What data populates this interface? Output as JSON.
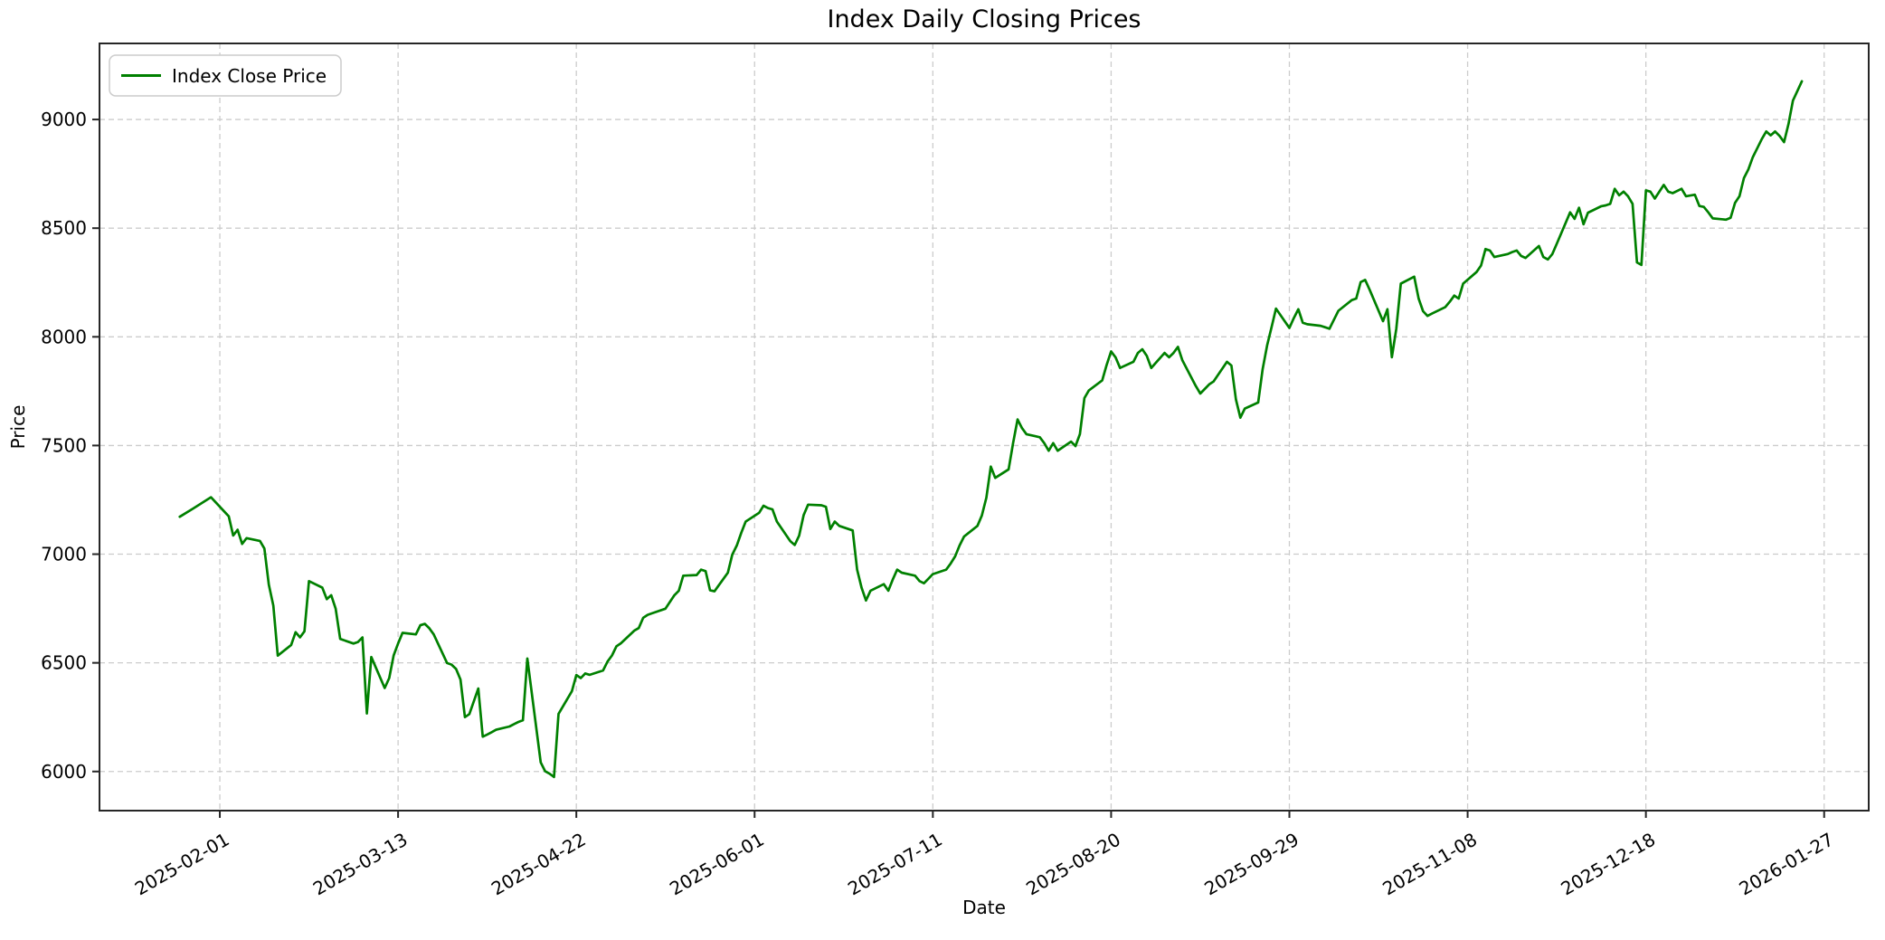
{
  "chart_data": {
    "type": "line",
    "title": "Index Daily Closing Prices",
    "xlabel": "Date",
    "ylabel": "Price",
    "legend": {
      "position": "upper-left",
      "entries": [
        "Index Close Price"
      ]
    },
    "grid": {
      "visible": true,
      "style": "dashed",
      "color": "#cccccc"
    },
    "x_ticks": [
      "2025-02-01",
      "2025-03-13",
      "2025-04-22",
      "2025-06-01",
      "2025-07-11",
      "2025-08-20",
      "2025-09-29",
      "2025-11-08",
      "2025-12-18",
      "2026-01-27"
    ],
    "x_tick_rotation": 30,
    "y_ticks": [
      6000,
      6500,
      7000,
      7500,
      8000,
      8500,
      9000
    ],
    "xlim": [
      "2025-01-05",
      "2026-02-06"
    ],
    "ylim": [
      5820,
      9350
    ],
    "series": [
      {
        "name": "Index Close Price",
        "color": "#008000",
        "line_width": 2.7,
        "data": [
          [
            "2025-01-23",
            7172
          ],
          [
            "2025-01-26",
            7210
          ],
          [
            "2025-01-30",
            7262
          ],
          [
            "2025-02-03",
            7174
          ],
          [
            "2025-02-04",
            7086
          ],
          [
            "2025-02-05",
            7112
          ],
          [
            "2025-02-06",
            7047
          ],
          [
            "2025-02-07",
            7074
          ],
          [
            "2025-02-10",
            7061
          ],
          [
            "2025-02-11",
            7026
          ],
          [
            "2025-02-12",
            6860
          ],
          [
            "2025-02-13",
            6763
          ],
          [
            "2025-02-14",
            6533
          ],
          [
            "2025-02-17",
            6582
          ],
          [
            "2025-02-18",
            6641
          ],
          [
            "2025-02-19",
            6617
          ],
          [
            "2025-02-20",
            6645
          ],
          [
            "2025-02-21",
            6876
          ],
          [
            "2025-02-24",
            6846
          ],
          [
            "2025-02-25",
            6793
          ],
          [
            "2025-02-26",
            6811
          ],
          [
            "2025-02-27",
            6749
          ],
          [
            "2025-02-28",
            6610
          ],
          [
            "2025-03-03",
            6589
          ],
          [
            "2025-03-04",
            6596
          ],
          [
            "2025-03-05",
            6617
          ],
          [
            "2025-03-06",
            6267
          ],
          [
            "2025-03-07",
            6527
          ],
          [
            "2025-03-10",
            6384
          ],
          [
            "2025-03-11",
            6430
          ],
          [
            "2025-03-12",
            6534
          ],
          [
            "2025-03-13",
            6589
          ],
          [
            "2025-03-14",
            6638
          ],
          [
            "2025-03-17",
            6631
          ],
          [
            "2025-03-18",
            6673
          ],
          [
            "2025-03-19",
            6679
          ],
          [
            "2025-03-20",
            6659
          ],
          [
            "2025-03-21",
            6631
          ],
          [
            "2025-03-24",
            6499
          ],
          [
            "2025-03-25",
            6492
          ],
          [
            "2025-03-26",
            6472
          ],
          [
            "2025-03-27",
            6423
          ],
          [
            "2025-03-28",
            6250
          ],
          [
            "2025-03-29",
            6264
          ],
          [
            "2025-03-31",
            6382
          ],
          [
            "2025-04-01",
            6160
          ],
          [
            "2025-04-02",
            6170
          ],
          [
            "2025-04-03",
            6181
          ],
          [
            "2025-04-04",
            6192
          ],
          [
            "2025-04-07",
            6207
          ],
          [
            "2025-04-08",
            6218
          ],
          [
            "2025-04-09",
            6228
          ],
          [
            "2025-04-10",
            6236
          ],
          [
            "2025-04-11",
            6520
          ],
          [
            "2025-04-14",
            6042
          ],
          [
            "2025-04-15",
            6001
          ],
          [
            "2025-04-16",
            5990
          ],
          [
            "2025-04-17",
            5975
          ],
          [
            "2025-04-18",
            6265
          ],
          [
            "2025-04-21",
            6370
          ],
          [
            "2025-04-22",
            6444
          ],
          [
            "2025-04-23",
            6430
          ],
          [
            "2025-04-24",
            6451
          ],
          [
            "2025-04-25",
            6445
          ],
          [
            "2025-04-28",
            6465
          ],
          [
            "2025-04-29",
            6506
          ],
          [
            "2025-04-30",
            6534
          ],
          [
            "2025-05-01",
            6576
          ],
          [
            "2025-05-02",
            6590
          ],
          [
            "2025-05-05",
            6648
          ],
          [
            "2025-05-06",
            6660
          ],
          [
            "2025-05-07",
            6707
          ],
          [
            "2025-05-08",
            6721
          ],
          [
            "2025-05-09",
            6728
          ],
          [
            "2025-05-12",
            6749
          ],
          [
            "2025-05-13",
            6780
          ],
          [
            "2025-05-14",
            6811
          ],
          [
            "2025-05-15",
            6832
          ],
          [
            "2025-05-16",
            6901
          ],
          [
            "2025-05-19",
            6904
          ],
          [
            "2025-05-20",
            6929
          ],
          [
            "2025-05-21",
            6922
          ],
          [
            "2025-05-22",
            6834
          ],
          [
            "2025-05-23",
            6829
          ],
          [
            "2025-05-26",
            6915
          ],
          [
            "2025-05-27",
            6998
          ],
          [
            "2025-05-28",
            7040
          ],
          [
            "2025-05-29",
            7098
          ],
          [
            "2025-05-30",
            7150
          ],
          [
            "2025-06-02",
            7190
          ],
          [
            "2025-06-03",
            7223
          ],
          [
            "2025-06-04",
            7212
          ],
          [
            "2025-06-05",
            7206
          ],
          [
            "2025-06-06",
            7150
          ],
          [
            "2025-06-09",
            7060
          ],
          [
            "2025-06-10",
            7042
          ],
          [
            "2025-06-11",
            7085
          ],
          [
            "2025-06-12",
            7180
          ],
          [
            "2025-06-13",
            7228
          ],
          [
            "2025-06-16",
            7225
          ],
          [
            "2025-06-17",
            7218
          ],
          [
            "2025-06-18",
            7116
          ],
          [
            "2025-06-19",
            7150
          ],
          [
            "2025-06-20",
            7130
          ],
          [
            "2025-06-23",
            7109
          ],
          [
            "2025-06-24",
            6929
          ],
          [
            "2025-06-25",
            6846
          ],
          [
            "2025-06-26",
            6787
          ],
          [
            "2025-06-27",
            6832
          ],
          [
            "2025-06-30",
            6862
          ],
          [
            "2025-07-01",
            6832
          ],
          [
            "2025-07-02",
            6883
          ],
          [
            "2025-07-03",
            6929
          ],
          [
            "2025-07-04",
            6915
          ],
          [
            "2025-07-07",
            6901
          ],
          [
            "2025-07-08",
            6876
          ],
          [
            "2025-07-09",
            6866
          ],
          [
            "2025-07-10",
            6887
          ],
          [
            "2025-07-11",
            6908
          ],
          [
            "2025-07-14",
            6929
          ],
          [
            "2025-07-15",
            6957
          ],
          [
            "2025-07-16",
            6990
          ],
          [
            "2025-07-17",
            7040
          ],
          [
            "2025-07-18",
            7081
          ],
          [
            "2025-07-21",
            7130
          ],
          [
            "2025-07-22",
            7178
          ],
          [
            "2025-07-23",
            7260
          ],
          [
            "2025-07-24",
            7403
          ],
          [
            "2025-07-25",
            7351
          ],
          [
            "2025-07-28",
            7390
          ],
          [
            "2025-07-29",
            7510
          ],
          [
            "2025-07-30",
            7620
          ],
          [
            "2025-07-31",
            7580
          ],
          [
            "2025-08-01",
            7552
          ],
          [
            "2025-08-04",
            7538
          ],
          [
            "2025-08-05",
            7511
          ],
          [
            "2025-08-06",
            7476
          ],
          [
            "2025-08-07",
            7511
          ],
          [
            "2025-08-08",
            7476
          ],
          [
            "2025-08-11",
            7518
          ],
          [
            "2025-08-12",
            7497
          ],
          [
            "2025-08-13",
            7552
          ],
          [
            "2025-08-14",
            7718
          ],
          [
            "2025-08-15",
            7753
          ],
          [
            "2025-08-18",
            7800
          ],
          [
            "2025-08-19",
            7871
          ],
          [
            "2025-08-20",
            7933
          ],
          [
            "2025-08-21",
            7906
          ],
          [
            "2025-08-22",
            7857
          ],
          [
            "2025-08-25",
            7885
          ],
          [
            "2025-08-26",
            7926
          ],
          [
            "2025-08-27",
            7943
          ],
          [
            "2025-08-28",
            7913
          ],
          [
            "2025-08-29",
            7857
          ],
          [
            "2025-09-01",
            7926
          ],
          [
            "2025-09-02",
            7906
          ],
          [
            "2025-09-03",
            7926
          ],
          [
            "2025-09-04",
            7954
          ],
          [
            "2025-09-05",
            7892
          ],
          [
            "2025-09-08",
            7774
          ],
          [
            "2025-09-09",
            7739
          ],
          [
            "2025-09-10",
            7760
          ],
          [
            "2025-09-11",
            7781
          ],
          [
            "2025-09-12",
            7795
          ],
          [
            "2025-09-15",
            7885
          ],
          [
            "2025-09-16",
            7868
          ],
          [
            "2025-09-17",
            7712
          ],
          [
            "2025-09-18",
            7628
          ],
          [
            "2025-09-19",
            7670
          ],
          [
            "2025-09-22",
            7698
          ],
          [
            "2025-09-23",
            7850
          ],
          [
            "2025-09-24",
            7961
          ],
          [
            "2025-09-25",
            8044
          ],
          [
            "2025-09-26",
            8130
          ],
          [
            "2025-09-29",
            8041
          ],
          [
            "2025-09-30",
            8086
          ],
          [
            "2025-10-01",
            8127
          ],
          [
            "2025-10-02",
            8065
          ],
          [
            "2025-10-03",
            8058
          ],
          [
            "2025-10-06",
            8051
          ],
          [
            "2025-10-07",
            8044
          ],
          [
            "2025-10-08",
            8037
          ],
          [
            "2025-10-09",
            8079
          ],
          [
            "2025-10-10",
            8120
          ],
          [
            "2025-10-13",
            8169
          ],
          [
            "2025-10-14",
            8176
          ],
          [
            "2025-10-15",
            8252
          ],
          [
            "2025-10-16",
            8262
          ],
          [
            "2025-10-17",
            8217
          ],
          [
            "2025-10-20",
            8072
          ],
          [
            "2025-10-21",
            8127
          ],
          [
            "2025-10-22",
            7906
          ],
          [
            "2025-10-23",
            8037
          ],
          [
            "2025-10-24",
            8245
          ],
          [
            "2025-10-27",
            8277
          ],
          [
            "2025-10-28",
            8176
          ],
          [
            "2025-10-29",
            8118
          ],
          [
            "2025-10-30",
            8096
          ],
          [
            "2025-10-31",
            8107
          ],
          [
            "2025-11-03",
            8137
          ],
          [
            "2025-11-04",
            8162
          ],
          [
            "2025-11-05",
            8190
          ],
          [
            "2025-11-06",
            8176
          ],
          [
            "2025-11-07",
            8245
          ],
          [
            "2025-11-10",
            8298
          ],
          [
            "2025-11-11",
            8328
          ],
          [
            "2025-11-12",
            8404
          ],
          [
            "2025-11-13",
            8397
          ],
          [
            "2025-11-14",
            8367
          ],
          [
            "2025-11-17",
            8381
          ],
          [
            "2025-11-18",
            8390
          ],
          [
            "2025-11-19",
            8397
          ],
          [
            "2025-11-20",
            8372
          ],
          [
            "2025-11-21",
            8363
          ],
          [
            "2025-11-24",
            8418
          ],
          [
            "2025-11-25",
            8367
          ],
          [
            "2025-11-26",
            8356
          ],
          [
            "2025-11-27",
            8381
          ],
          [
            "2025-11-28",
            8428
          ],
          [
            "2025-12-01",
            8573
          ],
          [
            "2025-12-02",
            8543
          ],
          [
            "2025-12-03",
            8594
          ],
          [
            "2025-12-04",
            8518
          ],
          [
            "2025-12-05",
            8571
          ],
          [
            "2025-12-08",
            8601
          ],
          [
            "2025-12-09",
            8605
          ],
          [
            "2025-12-10",
            8612
          ],
          [
            "2025-12-11",
            8681
          ],
          [
            "2025-12-12",
            8651
          ],
          [
            "2025-12-13",
            8668
          ],
          [
            "2025-12-14",
            8647
          ],
          [
            "2025-12-15",
            8612
          ],
          [
            "2025-12-16",
            8342
          ],
          [
            "2025-12-17",
            8331
          ],
          [
            "2025-12-18",
            8674
          ],
          [
            "2025-12-19",
            8668
          ],
          [
            "2025-12-20",
            8636
          ],
          [
            "2025-12-22",
            8699
          ],
          [
            "2025-12-23",
            8668
          ],
          [
            "2025-12-24",
            8661
          ],
          [
            "2025-12-26",
            8681
          ],
          [
            "2025-12-27",
            8647
          ],
          [
            "2025-12-29",
            8654
          ],
          [
            "2025-12-30",
            8602
          ],
          [
            "2025-12-31",
            8598
          ],
          [
            "2026-01-01",
            8573
          ],
          [
            "2026-01-02",
            8545
          ],
          [
            "2026-01-05",
            8539
          ],
          [
            "2026-01-06",
            8548
          ],
          [
            "2026-01-07",
            8616
          ],
          [
            "2026-01-08",
            8647
          ],
          [
            "2026-01-09",
            8730
          ],
          [
            "2026-01-10",
            8771
          ],
          [
            "2026-01-11",
            8827
          ],
          [
            "2026-01-12",
            8868
          ],
          [
            "2026-01-13",
            8910
          ],
          [
            "2026-01-14",
            8945
          ],
          [
            "2026-01-15",
            8927
          ],
          [
            "2026-01-16",
            8945
          ],
          [
            "2026-01-17",
            8924
          ],
          [
            "2026-01-18",
            8896
          ],
          [
            "2026-01-19",
            8979
          ],
          [
            "2026-01-20",
            9087
          ],
          [
            "2026-01-21",
            9132
          ],
          [
            "2026-01-22",
            9176
          ]
        ]
      }
    ]
  }
}
